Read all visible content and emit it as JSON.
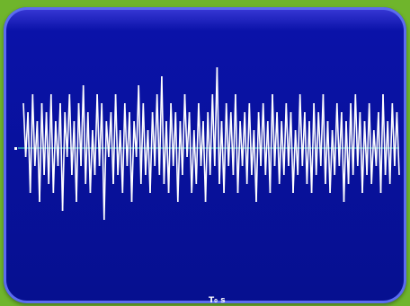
{
  "chart_data": {
    "type": "line",
    "title": "",
    "xlabel": "T₀ s",
    "ylabel": "",
    "grid": false,
    "baseline": 0,
    "ylim": [
      -10,
      10
    ],
    "colors": {
      "background": "#06108f",
      "frame": "#6fb52c",
      "signal": "#ffffff",
      "baseline": "#37c4c4"
    },
    "series": [
      {
        "values": [
          5,
          -1,
          4,
          -5,
          6,
          -2,
          3,
          -6,
          5,
          -3,
          4,
          -4,
          6,
          -5,
          3,
          -2,
          5,
          -7,
          4,
          -1,
          6,
          -3,
          3,
          -6,
          5,
          -2,
          7,
          -4,
          4,
          -5,
          2,
          -3,
          6,
          -2,
          5,
          -8,
          3,
          -1,
          4,
          -4,
          6,
          -3,
          2,
          -5,
          5,
          -2,
          4,
          -6,
          3,
          -1,
          7,
          -4,
          5,
          -3,
          2,
          -5,
          4,
          -2,
          6,
          -3,
          8,
          -4,
          3,
          -5,
          5,
          -2,
          4,
          -6,
          3,
          -3,
          6,
          -1,
          4,
          -5,
          2,
          -4,
          5,
          -2,
          3,
          -6,
          4,
          -3,
          6,
          -2,
          9,
          -4,
          3,
          -5,
          5,
          -2,
          4,
          -3,
          6,
          -5,
          3,
          -2,
          4,
          -4,
          5,
          -3,
          2,
          -6,
          4,
          -2,
          5,
          -3,
          3,
          -5,
          6,
          -2,
          4,
          -4,
          3,
          -3,
          5,
          -2,
          4,
          -5,
          2,
          -3,
          6,
          -2,
          4,
          -4,
          3,
          -5,
          5,
          -3,
          4,
          -2,
          6,
          -4,
          3,
          -5,
          2,
          -3,
          5,
          -2,
          4,
          -6,
          3,
          -4,
          5,
          -3,
          6,
          -2,
          4,
          -5,
          3,
          -3,
          5,
          -4,
          2,
          -2,
          4,
          -5,
          6,
          -3,
          3,
          -4,
          5,
          -2,
          4,
          -3
        ]
      }
    ]
  }
}
